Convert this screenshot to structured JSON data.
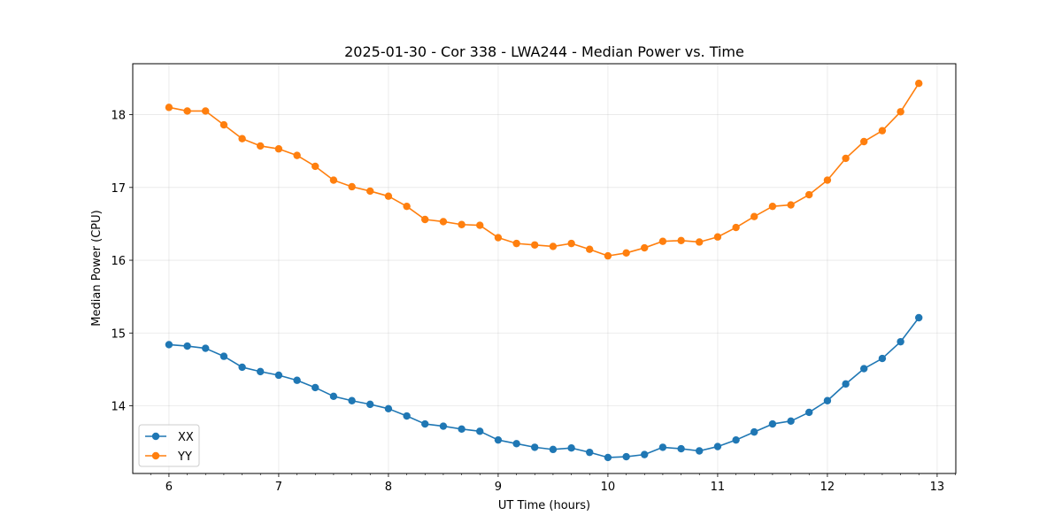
{
  "chart_data": {
    "type": "line",
    "title": "2025-01-30 - Cor 338 - LWA244 - Median Power vs. Time",
    "xlabel": "UT Time (hours)",
    "ylabel": "Median Power (CPU)",
    "xlim": [
      5.67,
      13.17
    ],
    "ylim": [
      13.07,
      18.7
    ],
    "xticks": [
      6,
      7,
      8,
      9,
      10,
      11,
      12,
      13
    ],
    "yticks": [
      14,
      15,
      16,
      17,
      18
    ],
    "grid": true,
    "legend_position": "lower-left",
    "x": [
      6.0,
      6.167,
      6.333,
      6.5,
      6.667,
      6.833,
      7.0,
      7.167,
      7.333,
      7.5,
      7.667,
      7.833,
      8.0,
      8.167,
      8.333,
      8.5,
      8.667,
      8.833,
      9.0,
      9.167,
      9.333,
      9.5,
      9.667,
      9.833,
      10.0,
      10.167,
      10.333,
      10.5,
      10.667,
      10.833,
      11.0,
      11.167,
      11.333,
      11.5,
      11.667,
      11.833,
      12.0,
      12.167,
      12.333,
      12.5,
      12.667,
      12.833
    ],
    "series": [
      {
        "name": "XX",
        "color": "#1f77b4",
        "values": [
          14.84,
          14.82,
          14.79,
          14.68,
          14.53,
          14.47,
          14.42,
          14.35,
          14.25,
          14.13,
          14.07,
          14.02,
          13.96,
          13.86,
          13.75,
          13.72,
          13.68,
          13.65,
          13.53,
          13.48,
          13.43,
          13.4,
          13.42,
          13.36,
          13.29,
          13.3,
          13.33,
          13.43,
          13.41,
          13.38,
          13.44,
          13.53,
          13.64,
          13.75,
          13.79,
          13.91,
          14.07,
          14.3,
          14.51,
          14.65,
          14.88,
          15.21
        ]
      },
      {
        "name": "YY",
        "color": "#ff7f0e",
        "values": [
          18.1,
          18.05,
          18.05,
          17.86,
          17.67,
          17.57,
          17.53,
          17.44,
          17.29,
          17.1,
          17.01,
          16.95,
          16.88,
          16.74,
          16.56,
          16.53,
          16.49,
          16.48,
          16.31,
          16.23,
          16.21,
          16.19,
          16.23,
          16.15,
          16.06,
          16.1,
          16.17,
          16.26,
          16.27,
          16.25,
          16.32,
          16.45,
          16.6,
          16.74,
          16.76,
          16.9,
          17.1,
          17.4,
          17.63,
          17.78,
          18.04,
          18.43
        ]
      }
    ]
  }
}
